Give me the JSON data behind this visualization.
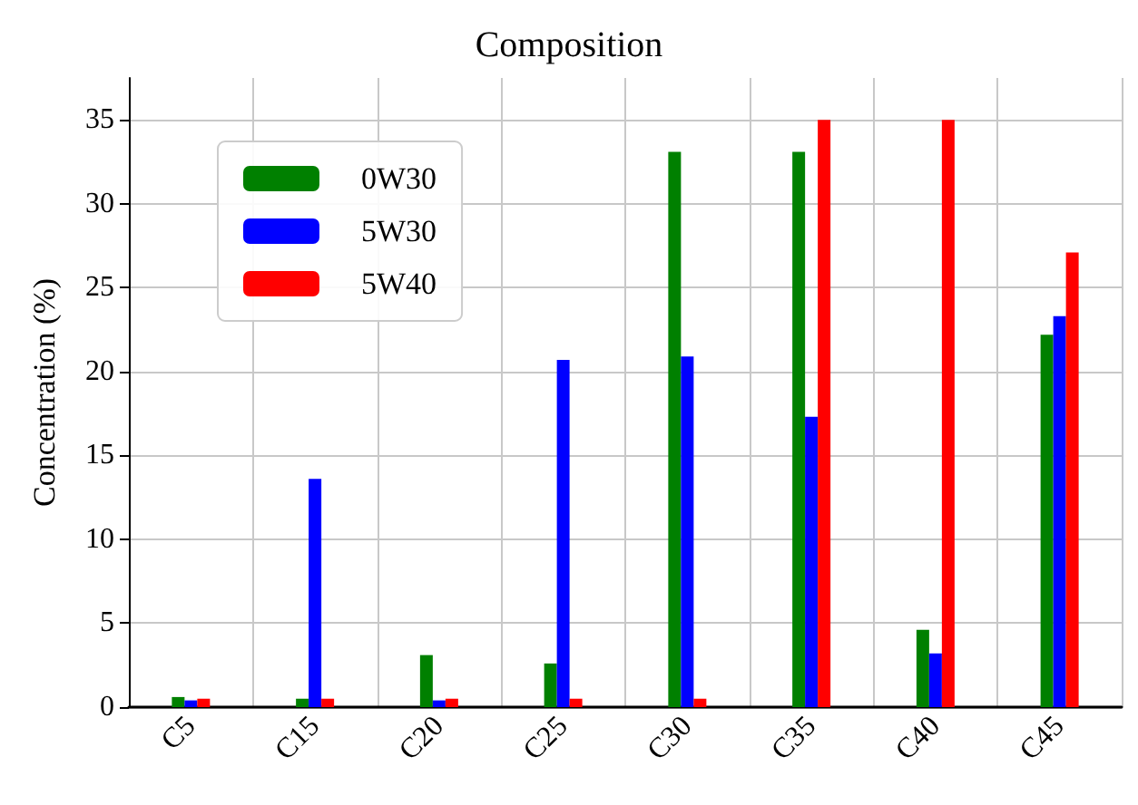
{
  "chart_data": {
    "type": "bar",
    "title": "Composition",
    "ylabel": "Concentration (%)",
    "categories": [
      "C5",
      "C15",
      "C20",
      "C25",
      "C30",
      "C35",
      "C40",
      "C45"
    ],
    "series": [
      {
        "name": "0W30",
        "color": "#008000",
        "values": [
          0.6,
          0.5,
          3.1,
          2.6,
          33.1,
          33.1,
          4.6,
          22.2
        ]
      },
      {
        "name": "5W30",
        "color": "#0000ff",
        "values": [
          0.4,
          13.6,
          0.4,
          20.7,
          20.9,
          17.3,
          3.2,
          23.3
        ]
      },
      {
        "name": "5W40",
        "color": "#ff0000",
        "values": [
          0.5,
          0.5,
          0.5,
          0.5,
          0.5,
          35,
          35,
          27.1
        ]
      }
    ],
    "ylim": [
      0,
      37.5
    ],
    "yticks": [
      0,
      5,
      10,
      15,
      20,
      25,
      30,
      35
    ],
    "grid": true,
    "legend": "top left"
  }
}
